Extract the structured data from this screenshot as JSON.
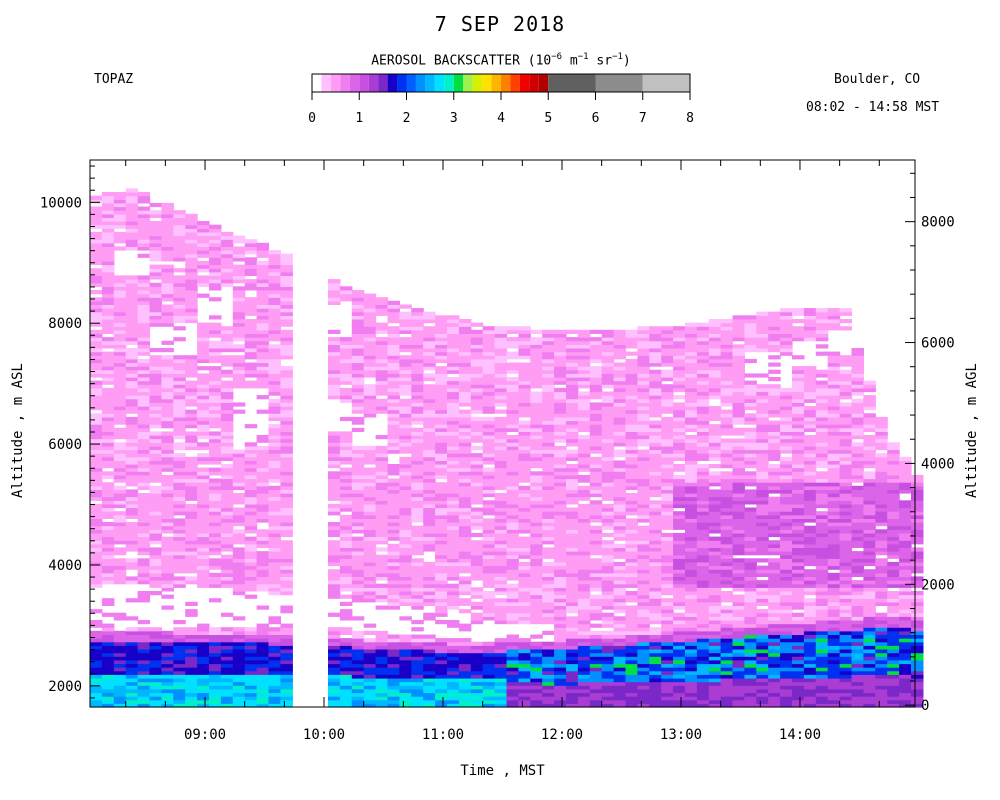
{
  "chart_data": {
    "type": "heatmap",
    "title": "7 SEP 2018",
    "instrument": "TOPAZ",
    "location": "Boulder, CO",
    "time_range": "08:02 - 14:58 MST",
    "colorbar": {
      "label_prefix": "AEROSOL BACKSCATTER (10",
      "label_exp1": "−6",
      "label_mid1": " m",
      "label_exp2": "−1",
      "label_mid2": " sr",
      "label_exp3": "−1",
      "label_suffix": ")",
      "ticks": [
        "0",
        "1",
        "2",
        "3",
        "4",
        "5",
        "6",
        "7",
        "8"
      ],
      "range": [
        0,
        8
      ],
      "colors": [
        "#ffffff",
        "#ffc0ff",
        "#ff9cf4",
        "#f07ef0",
        "#dc64e8",
        "#c850e0",
        "#aa3cd4",
        "#7a28c8",
        "#1800c8",
        "#0030f0",
        "#0060ff",
        "#0090ff",
        "#00b8ff",
        "#00e0ff",
        "#00f0c8",
        "#00e040",
        "#a0f050",
        "#d8f000",
        "#ffe000",
        "#ffb400",
        "#ff8000",
        "#ff4000",
        "#f00000",
        "#d00000",
        "#b00000",
        "#606060",
        "#8c8c8c",
        "#c0c0c0"
      ]
    },
    "xlabel": "Time , MST",
    "ylabel_left": "Altitude , m ASL",
    "ylabel_right": "Altitude , m AGL",
    "x_ticks": [
      "09:00",
      "10:00",
      "11:00",
      "12:00",
      "13:00",
      "14:00"
    ],
    "y_left_ticks": [
      "2000",
      "4000",
      "6000",
      "8000",
      "10000"
    ],
    "y_right_ticks": [
      "0",
      "2000",
      "4000",
      "6000",
      "8000"
    ],
    "x_range": [
      "08:02",
      "14:58"
    ],
    "y_left_range": [
      1650,
      10700
    ],
    "data_gap": [
      "09:46",
      "09:58"
    ],
    "profiles": [
      {
        "time": "08:02",
        "top": 10100,
        "clear": [
          [
            3000,
            3700
          ]
        ],
        "bl_top": 2900
      },
      {
        "time": "08:20",
        "top": 10200,
        "clear": [
          [
            3000,
            3700
          ],
          [
            8800,
            9200
          ]
        ],
        "bl_top": 2900
      },
      {
        "time": "08:40",
        "top": 9950,
        "clear": [
          [
            3000,
            3650
          ],
          [
            7500,
            8000
          ]
        ],
        "bl_top": 2880
      },
      {
        "time": "09:00",
        "top": 9600,
        "clear": [
          [
            3000,
            3600
          ],
          [
            8000,
            8600
          ]
        ],
        "bl_top": 2870
      },
      {
        "time": "09:20",
        "top": 9350,
        "clear": [
          [
            2950,
            3550
          ],
          [
            6000,
            6900
          ]
        ],
        "bl_top": 2860
      },
      {
        "time": "09:40",
        "top": 9100,
        "clear": [
          [
            2950,
            3500
          ]
        ],
        "bl_top": 2830
      },
      {
        "time": "10:00",
        "top": 8700,
        "clear": [
          [
            2950,
            3450
          ],
          [
            7800,
            8300
          ],
          [
            6200,
            6700
          ]
        ],
        "bl_top": 2800
      },
      {
        "time": "10:20",
        "top": 8450,
        "clear": [
          [
            2900,
            3400
          ],
          [
            6000,
            6500
          ]
        ],
        "bl_top": 2760
      },
      {
        "time": "10:40",
        "top": 8250,
        "clear": [
          [
            2850,
            3300
          ]
        ],
        "bl_top": 2720
      },
      {
        "time": "11:00",
        "top": 8100,
        "clear": [
          [
            2800,
            3200
          ]
        ],
        "bl_top": 2700
      },
      {
        "time": "11:20",
        "top": 7950,
        "clear": [
          [
            2750,
            3100
          ]
        ],
        "bl_top": 2700
      },
      {
        "time": "11:40",
        "top": 7900,
        "clear": [
          [
            2700,
            3000
          ]
        ],
        "bl_top": 2720
      },
      {
        "time": "12:00",
        "top": 7850,
        "clear": [],
        "bl_top": 2760
      },
      {
        "time": "12:20",
        "top": 7850,
        "clear": [],
        "bl_top": 2800
      },
      {
        "time": "12:40",
        "top": 7900,
        "clear": [],
        "bl_top": 2860
      },
      {
        "time": "13:00",
        "top": 7950,
        "clear": [],
        "bl_top": 2900
      },
      {
        "time": "13:20",
        "top": 8050,
        "clear": [],
        "bl_top": 2950
      },
      {
        "time": "13:40",
        "top": 8150,
        "clear": [
          [
            7000,
            7500
          ]
        ],
        "bl_top": 3000
      },
      {
        "time": "14:00",
        "top": 8250,
        "clear": [
          [
            7300,
            7700
          ]
        ],
        "bl_top": 3050
      },
      {
        "time": "14:20",
        "top": 8200,
        "clear": [
          [
            7500,
            7900
          ]
        ],
        "bl_top": 3100
      },
      {
        "time": "14:40",
        "top": 6200,
        "clear": [],
        "bl_top": 3150
      },
      {
        "time": "14:58",
        "top": 5400,
        "clear": [],
        "bl_top": 3100
      }
    ]
  }
}
